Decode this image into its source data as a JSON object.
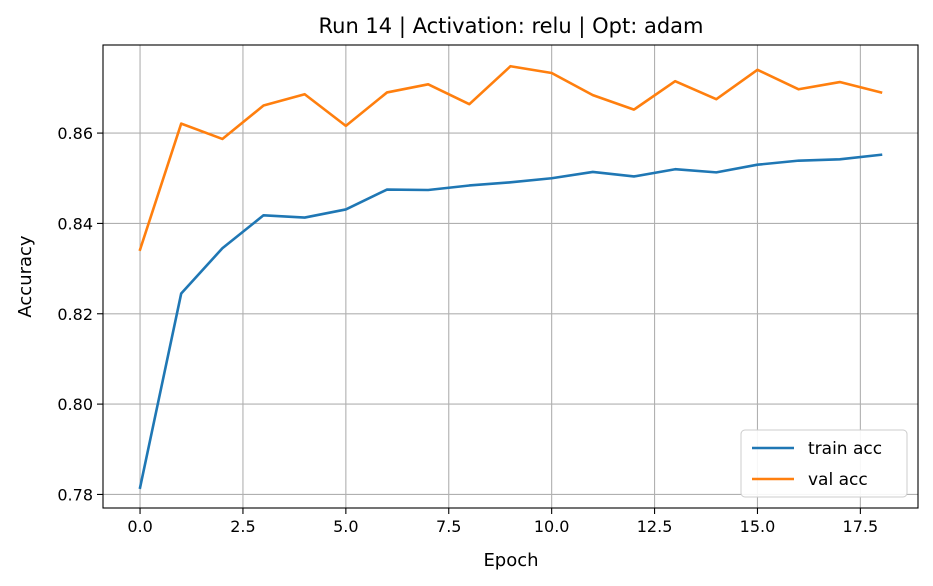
{
  "chart_data": {
    "type": "line",
    "title": "Run 14 | Activation: relu | Opt: adam",
    "xlabel": "Epoch",
    "ylabel": "Accuracy",
    "xlim": [
      -0.9,
      18.9
    ],
    "ylim": [
      0.777,
      0.8795
    ],
    "xticks": [
      0.0,
      2.5,
      5.0,
      7.5,
      10.0,
      12.5,
      15.0,
      17.5
    ],
    "xtick_labels": [
      "0.0",
      "2.5",
      "5.0",
      "7.5",
      "10.0",
      "12.5",
      "15.0",
      "17.5"
    ],
    "yticks": [
      0.78,
      0.8,
      0.82,
      0.84,
      0.86
    ],
    "ytick_labels": [
      "0.78",
      "0.80",
      "0.82",
      "0.84",
      "0.86"
    ],
    "grid": true,
    "legend_position": "lower-right",
    "x": [
      0,
      1,
      2,
      3,
      4,
      5,
      6,
      7,
      8,
      9,
      10,
      11,
      12,
      13,
      14,
      15,
      16,
      17,
      18
    ],
    "series": [
      {
        "name": "train acc",
        "color": "#1f77b4",
        "values": [
          0.7815,
          0.8245,
          0.8345,
          0.8418,
          0.8413,
          0.8431,
          0.8475,
          0.8474,
          0.8484,
          0.8491,
          0.85,
          0.8514,
          0.8504,
          0.852,
          0.8513,
          0.853,
          0.8539,
          0.8542,
          0.8552
        ]
      },
      {
        "name": "val acc",
        "color": "#ff7f0e",
        "values": [
          0.8342,
          0.8621,
          0.8587,
          0.8661,
          0.8686,
          0.8616,
          0.869,
          0.8708,
          0.8664,
          0.8748,
          0.8733,
          0.8684,
          0.8652,
          0.8715,
          0.8675,
          0.874,
          0.8697,
          0.8713,
          0.869
        ]
      }
    ]
  }
}
